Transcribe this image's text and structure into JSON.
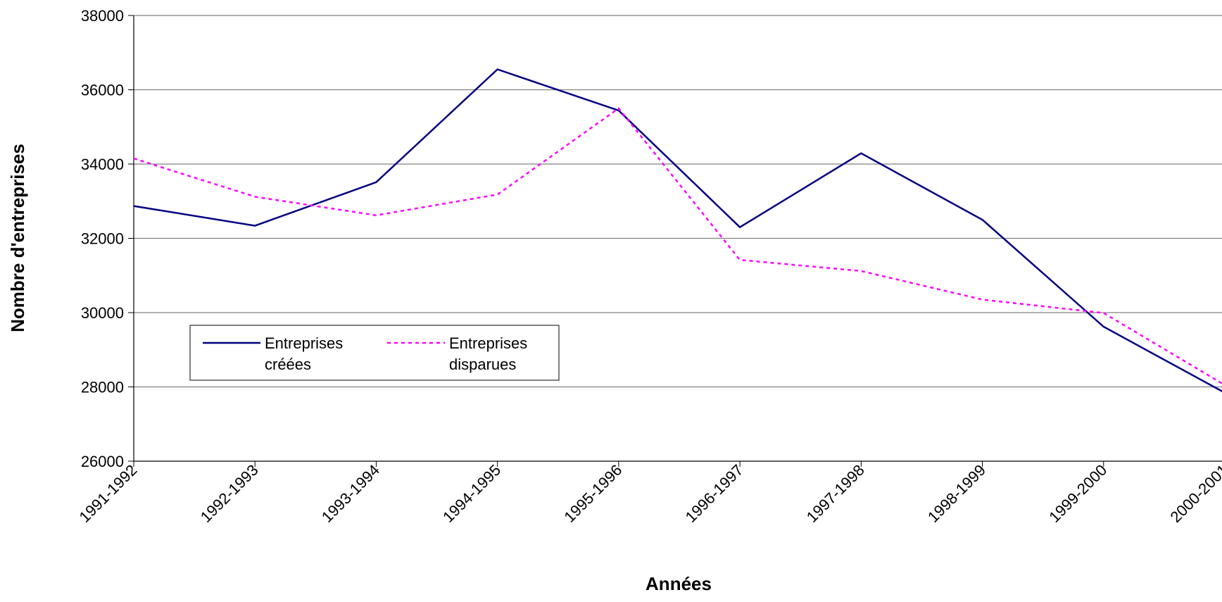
{
  "chart_data": {
    "type": "line",
    "title": "",
    "xlabel": "Années",
    "ylabel": "Nombre d'entreprises",
    "categories": [
      "1991-1992",
      "1992-1993",
      "1993-1994",
      "1994-1995",
      "1995-1996",
      "1996-1997",
      "1997-1998",
      "1998-1999",
      "1999-2000",
      "2000-2001"
    ],
    "ylim": [
      26000,
      38000
    ],
    "yticks": [
      26000,
      28000,
      30000,
      32000,
      34000,
      36000,
      38000
    ],
    "grid": true,
    "legend_position": "lower-left",
    "series": [
      {
        "name": "Entreprises créées",
        "legend_lines": [
          "Entreprises",
          "créées"
        ],
        "color": "#000080",
        "style": "solid",
        "values": [
          32870,
          32340,
          33510,
          36550,
          35440,
          32300,
          34290,
          32500,
          29620,
          27840
        ]
      },
      {
        "name": "Entreprises disparues",
        "legend_lines": [
          "Entreprises",
          "disparues"
        ],
        "color": "#FF00FF",
        "style": "dashed",
        "values": [
          34150,
          33120,
          32620,
          33180,
          35500,
          31420,
          31120,
          30350,
          29990,
          28050
        ]
      }
    ]
  }
}
